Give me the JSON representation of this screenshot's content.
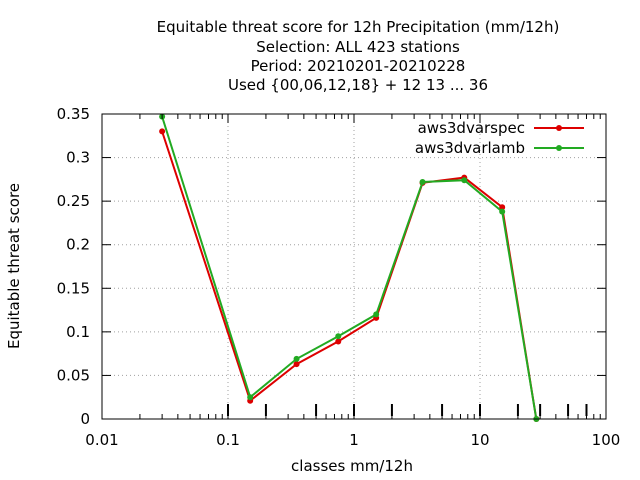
{
  "chart_data": {
    "type": "line",
    "title_lines": [
      "Equitable threat score  for 12h Precipitation (mm/12h)",
      "Selection: ALL     423 stations",
      "Period: 20210201-20210228",
      "Used {00,06,12,18} + 12 13 ... 36"
    ],
    "xlabel": "classes mm/12h",
    "ylabel": "Equitable threat score",
    "x_scale": "log",
    "xlim": [
      0.01,
      100
    ],
    "ylim": [
      0,
      0.35
    ],
    "grid": true,
    "legend_position": "top-right",
    "x_ticks": [
      {
        "value": 0.01,
        "label": "0.01"
      },
      {
        "value": 0.1,
        "label": "0.1"
      },
      {
        "value": 1,
        "label": "1"
      },
      {
        "value": 10,
        "label": "10"
      },
      {
        "value": 100,
        "label": "100"
      }
    ],
    "y_ticks": [
      {
        "value": 0,
        "label": "0"
      },
      {
        "value": 0.05,
        "label": "0.05"
      },
      {
        "value": 0.1,
        "label": "0.1"
      },
      {
        "value": 0.15,
        "label": "0.15"
      },
      {
        "value": 0.2,
        "label": "0.2"
      },
      {
        "value": 0.25,
        "label": "0.25"
      },
      {
        "value": 0.3,
        "label": "0.3"
      },
      {
        "value": 0.35,
        "label": "0.35"
      }
    ],
    "class_markers": [
      0.1,
      0.2,
      0.5,
      1,
      2,
      5,
      10,
      20,
      30,
      50,
      70
    ],
    "series": [
      {
        "name": "aws3dvarspec",
        "color": "#dd0000",
        "x": [
          0.03,
          0.15,
          0.35,
          0.75,
          1.5,
          3.5,
          7.5,
          15,
          28
        ],
        "y": [
          0.33,
          0.021,
          0.063,
          0.089,
          0.116,
          0.271,
          0.277,
          0.243,
          0.0
        ]
      },
      {
        "name": "aws3dvarlamb",
        "color": "#22aa22",
        "x": [
          0.03,
          0.15,
          0.35,
          0.75,
          1.5,
          3.5,
          7.5,
          15,
          28
        ],
        "y": [
          0.347,
          0.025,
          0.069,
          0.095,
          0.12,
          0.272,
          0.274,
          0.238,
          0.0
        ]
      }
    ]
  }
}
